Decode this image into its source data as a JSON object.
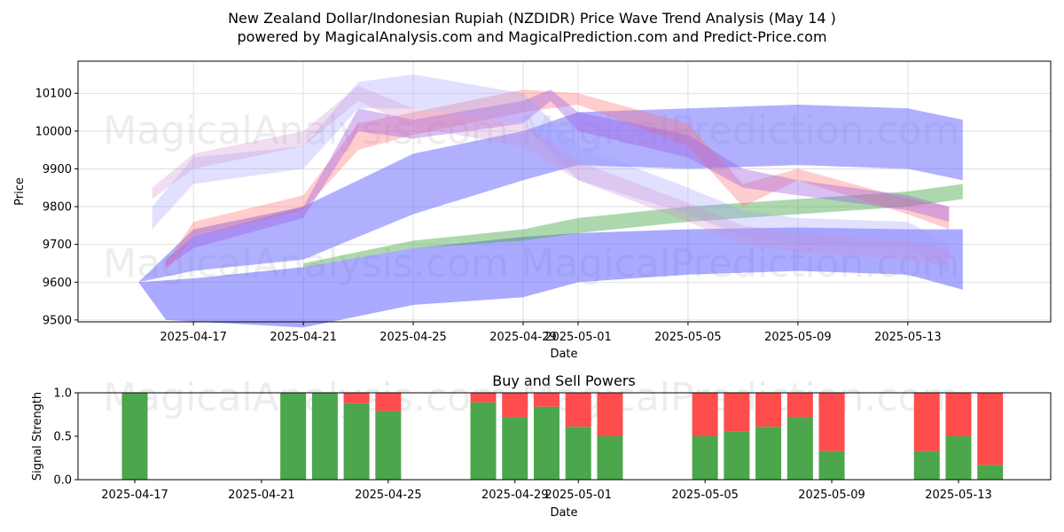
{
  "chart_data": [
    {
      "type": "area",
      "title": "New Zealand Dollar/Indonesian Rupiah (NZDIDR) Price Wave Trend Analysis (May 14 )",
      "subtitle": "powered by MagicalAnalysis.com and MagicalPrediction.com and Predict-Price.com",
      "xlabel": "Date",
      "ylabel": "Price",
      "xlim_day": [
        -4.2,
        31.2
      ],
      "ylim": [
        9495,
        10185
      ],
      "x_ticks": [
        {
          "day": 0,
          "label": "2025-04-17"
        },
        {
          "day": 4,
          "label": "2025-04-21"
        },
        {
          "day": 8,
          "label": "2025-04-25"
        },
        {
          "day": 12,
          "label": "2025-04-29"
        },
        {
          "day": 14,
          "label": "2025-05-01"
        },
        {
          "day": 18,
          "label": "2025-05-05"
        },
        {
          "day": 22,
          "label": "2025-05-09"
        },
        {
          "day": 26,
          "label": "2025-05-13"
        }
      ],
      "y_ticks": [
        9500,
        9600,
        9700,
        9800,
        9900,
        10000,
        10100
      ],
      "grid": true,
      "watermarks": [
        "MagicalAnalysis.com",
        "MagicalPrediction.com"
      ],
      "series": [
        {
          "name": "blue-broad-upper",
          "color": "#6f6fff",
          "opacity": 0.55,
          "points": [
            [
              -2,
              9600,
              9560
            ],
            [
              0,
              9630,
              9590
            ],
            [
              4,
              9660,
              9630
            ],
            [
              8,
              9780,
              9700
            ],
            [
              12,
              9870,
              9760
            ],
            [
              14,
              9910,
              9800
            ],
            [
              18,
              9900,
              9820
            ],
            [
              22,
              9910,
              9830
            ],
            [
              26,
              9900,
              9820
            ],
            [
              28,
              9870,
              9800
            ]
          ],
          "band": [
            [
              -2,
              9600
            ],
            [
              0,
              9740
            ],
            [
              4,
              9800
            ],
            [
              8,
              9940
            ],
            [
              12,
              10000
            ],
            [
              14,
              10050
            ],
            [
              18,
              10060
            ],
            [
              22,
              10070
            ],
            [
              26,
              10060
            ],
            [
              28,
              10030
            ]
          ]
        },
        {
          "name": "blue-lower",
          "color": "#5555ff",
          "opacity": 0.5,
          "points": [
            [
              -2,
              9600
            ],
            [
              -1,
              9500
            ],
            [
              4,
              9480
            ],
            [
              8,
              9540
            ],
            [
              12,
              9560
            ],
            [
              14,
              9600
            ],
            [
              18,
              9620
            ],
            [
              22,
              9630
            ],
            [
              26,
              9620
            ],
            [
              28,
              9580
            ]
          ],
          "band": [
            [
              -2,
              9600
            ],
            [
              0,
              9610
            ],
            [
              4,
              9640
            ],
            [
              8,
              9690
            ],
            [
              12,
              9720
            ],
            [
              14,
              9730
            ],
            [
              18,
              9740
            ],
            [
              22,
              9745
            ],
            [
              26,
              9740
            ],
            [
              28,
              9740
            ]
          ]
        },
        {
          "name": "green",
          "color": "#4aa84a",
          "opacity": 0.45,
          "points": [
            [
              4,
              9640
            ],
            [
              8,
              9690
            ],
            [
              12,
              9710
            ],
            [
              14,
              9730
            ],
            [
              18,
              9760
            ],
            [
              22,
              9780
            ],
            [
              26,
              9800
            ],
            [
              28,
              9820
            ]
          ],
          "band": [
            [
              4,
              9650
            ],
            [
              8,
              9710
            ],
            [
              12,
              9740
            ],
            [
              14,
              9770
            ],
            [
              18,
              9800
            ],
            [
              22,
              9820
            ],
            [
              26,
              9840
            ],
            [
              28,
              9860
            ]
          ]
        },
        {
          "name": "red",
          "color": "#ff7070",
          "opacity": 0.35,
          "points": [
            [
              -1,
              9630
            ],
            [
              0,
              9720
            ],
            [
              4,
              9790
            ],
            [
              6,
              9950
            ],
            [
              8,
              9990
            ],
            [
              12,
              10050
            ],
            [
              14,
              10070
            ],
            [
              18,
              9960
            ],
            [
              20,
              9800
            ],
            [
              22,
              9870
            ],
            [
              26,
              9780
            ],
            [
              27.5,
              9740
            ]
          ],
          "band": [
            [
              -1,
              9650
            ],
            [
              0,
              9760
            ],
            [
              4,
              9830
            ],
            [
              6,
              10020
            ],
            [
              8,
              10050
            ],
            [
              12,
              10110
            ],
            [
              14,
              10100
            ],
            [
              18,
              10020
            ],
            [
              20,
              9860
            ],
            [
              22,
              9900
            ],
            [
              26,
              9820
            ],
            [
              27.5,
              9800
            ]
          ]
        },
        {
          "name": "purple",
          "color": "#a060e0",
          "opacity": 0.4,
          "points": [
            [
              -1,
              9640
            ],
            [
              0,
              9690
            ],
            [
              4,
              9770
            ],
            [
              6,
              10000
            ],
            [
              8,
              9980
            ],
            [
              12,
              10020
            ],
            [
              13,
              10080
            ],
            [
              14,
              10000
            ],
            [
              18,
              9930
            ],
            [
              20,
              9850
            ],
            [
              22,
              9830
            ],
            [
              26,
              9790
            ],
            [
              27.5,
              9760
            ]
          ],
          "band": [
            [
              -1,
              9660
            ],
            [
              0,
              9720
            ],
            [
              4,
              9800
            ],
            [
              6,
              10060
            ],
            [
              8,
              10030
            ],
            [
              12,
              10080
            ],
            [
              13,
              10110
            ],
            [
              14,
              10050
            ],
            [
              18,
              9990
            ],
            [
              20,
              9900
            ],
            [
              22,
              9870
            ],
            [
              26,
              9830
            ],
            [
              27.5,
              9800
            ]
          ]
        },
        {
          "name": "pale-blue",
          "color": "#9a9aff",
          "opacity": 0.3,
          "points": [
            [
              -1.5,
              9740
            ],
            [
              0,
              9860
            ],
            [
              4,
              9900
            ],
            [
              6,
              10060
            ],
            [
              8,
              10060
            ],
            [
              12,
              10020
            ],
            [
              14,
              9870
            ],
            [
              18,
              9780
            ],
            [
              20,
              9720
            ],
            [
              22,
              9700
            ],
            [
              26,
              9690
            ],
            [
              27.5,
              9620
            ]
          ],
          "band": [
            [
              -1.5,
              9800
            ],
            [
              0,
              9930
            ],
            [
              4,
              9960
            ],
            [
              6,
              10130
            ],
            [
              8,
              10150
            ],
            [
              12,
              10100
            ],
            [
              14,
              9960
            ],
            [
              18,
              9850
            ],
            [
              20,
              9790
            ],
            [
              22,
              9770
            ],
            [
              26,
              9760
            ],
            [
              27.5,
              9700
            ]
          ]
        },
        {
          "name": "pale-pink",
          "color": "#d090d0",
          "opacity": 0.3,
          "points": [
            [
              -1.5,
              9820
            ],
            [
              0,
              9900
            ],
            [
              4,
              9960
            ],
            [
              6,
              10080
            ],
            [
              8,
              10010
            ],
            [
              12,
              9960
            ],
            [
              14,
              9870
            ],
            [
              18,
              9760
            ],
            [
              20,
              9700
            ],
            [
              22,
              9680
            ],
            [
              26,
              9660
            ],
            [
              27.5,
              9640
            ]
          ],
          "band": [
            [
              -1.5,
              9850
            ],
            [
              0,
              9940
            ],
            [
              4,
              10000
            ],
            [
              6,
              10120
            ],
            [
              8,
              10060
            ],
            [
              12,
              10020
            ],
            [
              14,
              9920
            ],
            [
              18,
              9810
            ],
            [
              20,
              9750
            ],
            [
              22,
              9730
            ],
            [
              26,
              9710
            ],
            [
              27.5,
              9690
            ]
          ]
        }
      ]
    },
    {
      "type": "bar",
      "title": "Buy and Sell Powers",
      "xlabel": "Date",
      "ylabel": "Signal Strength",
      "ylim": [
        0,
        1
      ],
      "y_ticks": [
        "0.0",
        "0.5",
        "1.0"
      ],
      "x_ticks": [
        {
          "day": 0,
          "label": "2025-04-17"
        },
        {
          "day": 4,
          "label": "2025-04-21"
        },
        {
          "day": 8,
          "label": "2025-04-25"
        },
        {
          "day": 12,
          "label": "2025-04-29"
        },
        {
          "day": 14,
          "label": "2025-05-01"
        },
        {
          "day": 18,
          "label": "2025-05-05"
        },
        {
          "day": 22,
          "label": "2025-05-09"
        },
        {
          "day": 26,
          "label": "2025-05-13"
        }
      ],
      "buy_color": "#4ca64c",
      "sell_color": "#ff4c4c",
      "bars": [
        {
          "day": 0,
          "buy": 1.0
        },
        {
          "day": 5,
          "buy": 1.0
        },
        {
          "day": 6,
          "buy": 1.0
        },
        {
          "day": 7,
          "buy": 0.88
        },
        {
          "day": 8,
          "buy": 0.79
        },
        {
          "day": 11,
          "buy": 0.89
        },
        {
          "day": 12,
          "buy": 0.72
        },
        {
          "day": 13,
          "buy": 0.84
        },
        {
          "day": 14,
          "buy": 0.61
        },
        {
          "day": 15,
          "buy": 0.5
        },
        {
          "day": 18,
          "buy": 0.5
        },
        {
          "day": 19,
          "buy": 0.56
        },
        {
          "day": 20,
          "buy": 0.61
        },
        {
          "day": 21,
          "buy": 0.72
        },
        {
          "day": 22,
          "buy": 0.33
        },
        {
          "day": 25,
          "buy": 0.33
        },
        {
          "day": 26,
          "buy": 0.5
        },
        {
          "day": 27,
          "buy": 0.17
        }
      ]
    }
  ]
}
